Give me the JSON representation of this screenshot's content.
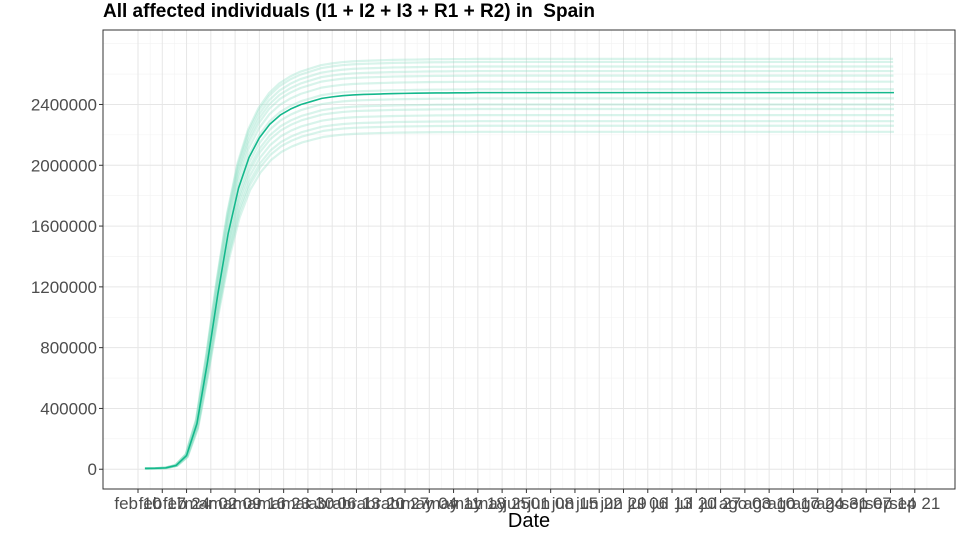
{
  "chart_data": {
    "type": "line",
    "title": "All affected individuals (I1 + I2 + I3 + R1 + R2) in  Spain",
    "xlabel": "Date",
    "ylabel": "",
    "ylim": [
      -130000,
      2890000
    ],
    "y_ticks": [
      0,
      400000,
      800000,
      1200000,
      1600000,
      2000000,
      2400000
    ],
    "x_tick_labels": [
      "feb 10",
      "feb 17",
      "feb 24",
      "mar 02",
      "mar 09",
      "mar 16",
      "mar 23",
      "mar 30",
      "abr 06",
      "abr 13",
      "abr 20",
      "abr 27",
      "may 04",
      "may 11",
      "may 18",
      "may 25",
      "jun 01",
      "jun 08",
      "jun 15",
      "jun 22",
      "jun 29",
      "jul 06",
      "jul 13",
      "jul 20",
      "jul 27",
      "ago 03",
      "ago 10",
      "ago 17",
      "ago 24",
      "ago 31",
      "sep 07",
      "sep 14",
      "sep 21"
    ],
    "x_range_days": [
      0,
      233
    ],
    "curve_start_day": 2,
    "curve_end_day": 218,
    "grid": true,
    "legend": "none",
    "colors": {
      "main": "#14b88c",
      "ensemble": "#8fe0c6"
    },
    "series": [
      {
        "role": "main",
        "x_start_day": 2,
        "x_step_days": 3,
        "values": [
          5000,
          6000,
          9000,
          25000,
          90000,
          300000,
          700000,
          1150000,
          1550000,
          1850000,
          2050000,
          2180000,
          2270000,
          2330000,
          2370000,
          2400000,
          2420000,
          2440000,
          2450000,
          2458000,
          2463000,
          2466000,
          2468000,
          2470000,
          2472000,
          2473000,
          2474000,
          2475000,
          2476000,
          2476000,
          2477000,
          2477000,
          2478000,
          2478000,
          2478000,
          2478000,
          2478000,
          2478000,
          2478000,
          2478000,
          2478000,
          2478000,
          2478000,
          2478000,
          2478000,
          2478000,
          2478000,
          2478000,
          2478000,
          2478000,
          2478000,
          2478000,
          2478000,
          2478000,
          2478000,
          2478000,
          2478000,
          2478000,
          2478000,
          2478000,
          2478000,
          2478000,
          2478000,
          2478000,
          2478000,
          2478000,
          2478000,
          2478000,
          2478000,
          2478000,
          2478000,
          2478000,
          2478000
        ]
      },
      {
        "role": "ensemble",
        "plateau": 2220000
      },
      {
        "role": "ensemble",
        "plateau": 2260000
      },
      {
        "role": "ensemble",
        "plateau": 2290000
      },
      {
        "role": "ensemble",
        "plateau": 2330000
      },
      {
        "role": "ensemble",
        "plateau": 2370000
      },
      {
        "role": "ensemble",
        "plateau": 2400000
      },
      {
        "role": "ensemble",
        "plateau": 2440000
      },
      {
        "role": "ensemble",
        "plateau": 2500000
      },
      {
        "role": "ensemble",
        "plateau": 2550000
      },
      {
        "role": "ensemble",
        "plateau": 2590000
      },
      {
        "role": "ensemble",
        "plateau": 2620000
      },
      {
        "role": "ensemble",
        "plateau": 2650000
      },
      {
        "role": "ensemble",
        "plateau": 2680000
      },
      {
        "role": "ensemble",
        "plateau": 2700000
      }
    ]
  }
}
